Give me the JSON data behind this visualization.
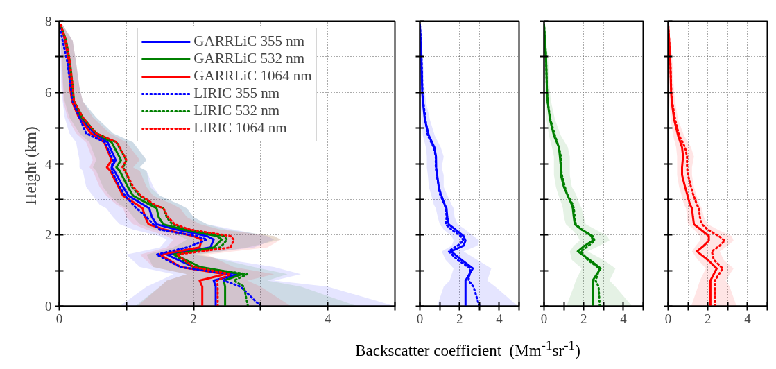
{
  "chart_data": [
    {
      "type": "line",
      "orientation": "horizontal",
      "xlabel": "Backscatter coefficient  (Mm$^{-1}$sr$^{-1}$)",
      "ylabel": "Height  (km)",
      "legend": "top",
      "grid": true,
      "xlim": [
        0,
        5
      ],
      "xticks": [
        0,
        {
          "value": 1,
          "label": null
        },
        2,
        {
          "value": 3,
          "label": null
        },
        4,
        {
          "value": 5,
          "label": null
        }
      ],
      "ylim": [
        0,
        8
      ],
      "yticks": [
        0,
        {
          "value": 1,
          "label": null
        },
        2,
        {
          "value": 3,
          "label": null
        },
        4,
        {
          "value": 5,
          "label": null
        },
        6,
        {
          "value": 7,
          "label": null
        },
        8
      ],
      "series": [
        {
          "name": "GARRLiC 355 nm",
          "color": "#0000ff",
          "line_style": "solid",
          "values": [
            2.33,
            2.33,
            2.3,
            2.67,
            2.0,
            1.6,
            2.25,
            2.3,
            2.2,
            1.75,
            1.45,
            1.38,
            1.34,
            1.25,
            1.03,
            0.95,
            0.82,
            0.78,
            0.84,
            0.72,
            0.52,
            0.31,
            0.2,
            0.17,
            0.14,
            0.09,
            0.02
          ],
          "x": [
            0,
            0.55,
            0.72,
            0.9,
            1.1,
            1.45,
            1.65,
            1.87,
            1.97,
            2.15,
            2.3,
            2.5,
            2.75,
            2.85,
            3.1,
            3.35,
            3.8,
            3.9,
            4.1,
            4.6,
            4.85,
            5.3,
            5.75,
            6.15,
            6.85,
            7.45,
            7.9
          ],
          "lower": [
            0.9,
            1.3,
            1.5,
            1.7,
            1.2,
            1.0,
            1.5,
            1.6,
            1.5,
            1.1,
            0.9,
            0.8,
            0.7,
            0.6,
            0.5,
            0.4,
            0.35,
            0.3,
            0.3,
            0.25,
            0.15,
            0.08,
            0.05,
            0.03,
            0.02,
            0.01,
            0.0
          ],
          "upper": [
            5.0,
            4.0,
            3.2,
            3.6,
            3.2,
            2.0,
            2.9,
            3.2,
            3.1,
            2.6,
            2.2,
            2.0,
            1.9,
            1.8,
            1.5,
            1.4,
            1.3,
            1.2,
            1.3,
            1.1,
            0.8,
            0.55,
            0.35,
            0.3,
            0.25,
            0.2,
            0.05
          ]
        },
        {
          "name": "GARRLiC 532 nm",
          "color": "#008000",
          "line_style": "solid",
          "values": [
            2.47,
            2.47,
            2.45,
            2.72,
            2.1,
            1.72,
            2.3,
            2.42,
            2.35,
            1.85,
            1.55,
            1.48,
            1.45,
            1.35,
            1.1,
            1.02,
            0.9,
            0.85,
            0.92,
            0.78,
            0.55,
            0.33,
            0.2,
            0.18,
            0.15,
            0.1,
            0.02
          ],
          "x": [
            0,
            0.55,
            0.72,
            0.9,
            1.1,
            1.45,
            1.65,
            1.87,
            1.97,
            2.15,
            2.3,
            2.5,
            2.75,
            2.85,
            3.1,
            3.35,
            3.8,
            3.9,
            4.1,
            4.6,
            4.85,
            5.3,
            5.75,
            6.15,
            6.85,
            7.45,
            7.9
          ],
          "lower": [
            1.13,
            1.5,
            1.6,
            1.9,
            1.4,
            1.3,
            1.7,
            1.9,
            1.8,
            1.4,
            1.2,
            1.1,
            1.0,
            0.9,
            0.75,
            0.65,
            0.55,
            0.5,
            0.55,
            0.45,
            0.3,
            0.15,
            0.08,
            0.06,
            0.04,
            0.02,
            0.0
          ],
          "upper": [
            4.44,
            3.6,
            3.1,
            3.4,
            2.9,
            2.1,
            2.8,
            3.3,
            3.2,
            2.5,
            2.2,
            2.0,
            1.9,
            1.8,
            1.5,
            1.35,
            1.3,
            1.2,
            1.3,
            1.1,
            0.8,
            0.55,
            0.35,
            0.3,
            0.25,
            0.2,
            0.05
          ]
        },
        {
          "name": "GARRLiC 1064 nm",
          "color": "#ff0000",
          "line_style": "solid",
          "values": [
            2.13,
            2.13,
            2.09,
            2.47,
            1.81,
            1.5,
            2.09,
            2.12,
            2.0,
            1.57,
            1.33,
            1.28,
            1.24,
            1.16,
            0.95,
            0.88,
            0.76,
            0.71,
            0.78,
            0.67,
            0.47,
            0.29,
            0.19,
            0.16,
            0.14,
            0.09,
            0.02
          ],
          "x": [
            0,
            0.55,
            0.72,
            0.9,
            1.1,
            1.45,
            1.65,
            1.87,
            1.97,
            2.15,
            2.3,
            2.5,
            2.75,
            2.85,
            3.1,
            3.35,
            3.8,
            3.9,
            4.1,
            4.6,
            4.85,
            5.3,
            5.75,
            6.15,
            6.85,
            7.45,
            7.9
          ],
          "lower": [
            1.16,
            1.5,
            1.6,
            1.9,
            1.4,
            1.2,
            1.6,
            1.7,
            1.6,
            1.3,
            1.1,
            1.0,
            0.95,
            0.85,
            0.7,
            0.6,
            0.5,
            0.45,
            0.5,
            0.4,
            0.25,
            0.12,
            0.06,
            0.05,
            0.03,
            0.02,
            0.0
          ],
          "upper": [
            3.45,
            3.0,
            2.8,
            3.2,
            2.6,
            2.2,
            3.1,
            3.3,
            3.2,
            2.4,
            2.1,
            1.9,
            1.8,
            1.7,
            1.4,
            1.3,
            1.2,
            1.1,
            1.2,
            1.0,
            0.75,
            0.5,
            0.35,
            0.3,
            0.25,
            0.2,
            0.05
          ]
        },
        {
          "name": "LIRIC 355 nm",
          "color": "#0000ff",
          "line_style": "dotted",
          "values": [
            3.0,
            2.7,
            2.45,
            2.55,
            1.8,
            1.45,
            1.9,
            2.2,
            2.05,
            1.5,
            1.4,
            1.3,
            1.15,
            1.1,
            0.98,
            0.9,
            0.78,
            0.78,
            0.8,
            0.68,
            0.4,
            0.3,
            0.2,
            0.17,
            0.12,
            0.05,
            0.0
          ],
          "x": [
            0,
            0.55,
            0.72,
            0.9,
            1.1,
            1.45,
            1.65,
            1.87,
            1.97,
            2.15,
            2.3,
            2.5,
            2.75,
            2.85,
            3.1,
            3.35,
            3.8,
            3.9,
            4.1,
            4.6,
            4.85,
            5.3,
            5.75,
            6.15,
            6.85,
            7.45,
            7.9
          ]
        },
        {
          "name": "LIRIC 532 nm",
          "color": "#008000",
          "line_style": "dotted",
          "values": [
            2.81,
            2.75,
            2.6,
            2.8,
            2.0,
            1.7,
            2.4,
            2.5,
            2.45,
            1.9,
            1.68,
            1.6,
            1.55,
            1.4,
            1.2,
            1.08,
            0.98,
            0.95,
            1.0,
            0.85,
            0.55,
            0.35,
            0.22,
            0.2,
            0.16,
            0.1,
            0.02
          ],
          "x": [
            0,
            0.55,
            0.72,
            0.9,
            1.1,
            1.45,
            1.65,
            1.87,
            1.97,
            2.15,
            2.3,
            2.5,
            2.75,
            2.85,
            3.1,
            3.35,
            3.8,
            3.9,
            4.1,
            4.6,
            4.85,
            5.3,
            5.75,
            6.15,
            6.85,
            7.45,
            7.9
          ]
        },
        {
          "name": "LIRIC 1064 nm",
          "color": "#ff0000",
          "line_style": "dotted",
          "values": [
            2.36,
            2.36,
            2.35,
            2.55,
            2.0,
            1.75,
            2.55,
            2.6,
            2.55,
            1.95,
            1.72,
            1.62,
            1.55,
            1.42,
            1.22,
            1.1,
            0.98,
            0.94,
            1.0,
            0.86,
            0.55,
            0.35,
            0.22,
            0.2,
            0.16,
            0.1,
            0.02
          ],
          "x": [
            0,
            0.55,
            0.72,
            0.9,
            1.1,
            1.45,
            1.65,
            1.87,
            1.97,
            2.15,
            2.3,
            2.5,
            2.75,
            2.85,
            3.1,
            3.35,
            3.8,
            3.9,
            4.1,
            4.6,
            4.85,
            5.3,
            5.75,
            6.15,
            6.85,
            7.45,
            7.9
          ]
        }
      ]
    },
    {
      "type": "line",
      "orientation": "horizontal",
      "grid": true,
      "tick_labels": "x",
      "xlim": [
        0,
        5
      ],
      "xticks": [
        0,
        {
          "value": 1,
          "label": null
        },
        2,
        {
          "value": 3,
          "label": null
        },
        4,
        {
          "value": 5,
          "label": null
        }
      ],
      "ylim": [
        0,
        8
      ],
      "yticks": [
        0,
        {
          "value": 1,
          "label": null
        },
        {
          "value": 2,
          "label": null
        },
        {
          "value": 3,
          "label": null
        },
        {
          "value": 4,
          "label": null
        },
        {
          "value": 5,
          "label": null
        },
        {
          "value": 6,
          "label": null
        },
        {
          "value": 7,
          "label": null
        },
        {
          "value": 8,
          "label": null
        }
      ],
      "series": [
        {
          "color": "#0000ff",
          "line_style": "solid",
          "values": [
            2.3,
            2.3,
            2.3,
            2.67,
            2.1,
            1.57,
            2.2,
            2.3,
            2.2,
            1.8,
            1.45,
            1.38,
            1.34,
            1.25,
            1.05,
            0.95,
            0.87,
            0.82,
            0.81,
            0.73,
            0.45,
            0.25,
            0.15,
            0.12,
            0.07,
            0.03,
            0.0
          ],
          "x": [
            0,
            0.55,
            0.72,
            1.06,
            1.3,
            1.54,
            1.7,
            1.84,
            1.97,
            2.15,
            2.3,
            2.5,
            2.75,
            2.85,
            3.16,
            3.35,
            3.68,
            3.9,
            4.2,
            4.46,
            4.79,
            5.24,
            5.75,
            6.0,
            7.0,
            7.45,
            7.9
          ],
          "lower": [
            0.87,
            1.2,
            1.5,
            1.7,
            1.3,
            1.1,
            1.6,
            1.7,
            1.6,
            1.2,
            1.0,
            0.9,
            0.8,
            0.7,
            0.55,
            0.45,
            0.4,
            0.35,
            0.35,
            0.3,
            0.15,
            0.08,
            0.05,
            0.03,
            0.02,
            0.01,
            0.0
          ],
          "upper": [
            4.94,
            3.8,
            3.4,
            3.6,
            2.9,
            2.2,
            2.9,
            3.0,
            2.7,
            2.3,
            1.9,
            1.75,
            1.7,
            1.6,
            1.35,
            1.2,
            1.2,
            1.1,
            1.2,
            1.05,
            0.75,
            0.5,
            0.3,
            0.25,
            0.15,
            0.1,
            0.03
          ]
        },
        {
          "color": "#0000ff",
          "line_style": "dotted",
          "values": [
            3.0,
            2.7,
            2.45,
            2.55,
            1.9,
            1.45,
            1.9,
            2.2,
            2.05,
            1.6,
            1.3,
            1.35,
            1.3,
            1.25,
            1.0,
            0.95,
            0.85,
            0.8,
            0.8,
            0.7,
            0.4,
            0.28,
            0.17,
            0.13,
            0.08,
            0.05,
            0.0
          ],
          "x": [
            0,
            0.55,
            0.72,
            1.06,
            1.3,
            1.54,
            1.7,
            1.84,
            1.97,
            2.15,
            2.3,
            2.5,
            2.75,
            2.85,
            3.16,
            3.35,
            3.68,
            3.9,
            4.2,
            4.46,
            4.79,
            5.24,
            5.75,
            6.0,
            7.0,
            7.45,
            7.9
          ]
        }
      ]
    },
    {
      "type": "line",
      "orientation": "horizontal",
      "grid": true,
      "tick_labels": "x",
      "xlim": [
        0,
        5
      ],
      "xticks": [
        0,
        {
          "value": 1,
          "label": null
        },
        2,
        {
          "value": 3,
          "label": null
        },
        4,
        {
          "value": 5,
          "label": null
        }
      ],
      "ylim": [
        0,
        8
      ],
      "yticks": [
        0,
        {
          "value": 1,
          "label": null
        },
        {
          "value": 2,
          "label": null
        },
        {
          "value": 3,
          "label": null
        },
        {
          "value": 4,
          "label": null
        },
        {
          "value": 5,
          "label": null
        },
        {
          "value": 6,
          "label": null
        },
        {
          "value": 7,
          "label": null
        },
        {
          "value": 8,
          "label": null
        }
      ],
      "series": [
        {
          "color": "#008000",
          "line_style": "solid",
          "values": [
            2.45,
            2.45,
            2.45,
            2.85,
            2.3,
            1.7,
            2.05,
            2.45,
            2.4,
            1.9,
            1.55,
            1.5,
            1.45,
            1.4,
            1.15,
            1.0,
            0.85,
            0.85,
            0.8,
            0.75,
            0.5,
            0.3,
            0.18,
            0.15,
            0.1,
            0.05,
            0.0
          ],
          "x": [
            0,
            0.55,
            0.72,
            1.06,
            1.3,
            1.54,
            1.7,
            1.84,
            1.97,
            2.15,
            2.3,
            2.5,
            2.75,
            2.85,
            3.16,
            3.35,
            3.68,
            3.9,
            4.2,
            4.46,
            4.79,
            5.24,
            5.75,
            6.0,
            7.0,
            7.45,
            7.9
          ],
          "lower": [
            1.13,
            1.5,
            1.6,
            1.9,
            1.4,
            1.3,
            1.5,
            1.8,
            1.7,
            1.4,
            1.1,
            1.0,
            0.95,
            0.9,
            0.7,
            0.6,
            0.5,
            0.5,
            0.5,
            0.4,
            0.25,
            0.12,
            0.07,
            0.05,
            0.03,
            0.01,
            0.0
          ],
          "upper": [
            4.44,
            3.6,
            3.3,
            3.6,
            3.0,
            2.2,
            2.8,
            3.3,
            3.2,
            2.6,
            2.1,
            2.0,
            1.9,
            1.8,
            1.6,
            1.4,
            1.3,
            1.3,
            1.3,
            1.2,
            0.85,
            0.55,
            0.35,
            0.3,
            0.2,
            0.1,
            0.03
          ]
        },
        {
          "color": "#008000",
          "line_style": "dotted",
          "values": [
            2.81,
            2.75,
            2.6,
            2.8,
            2.2,
            1.85,
            2.25,
            2.55,
            2.45,
            1.9,
            1.6,
            1.55,
            1.5,
            1.45,
            1.15,
            1.05,
            0.9,
            0.85,
            0.85,
            0.75,
            0.55,
            0.32,
            0.18,
            0.15,
            0.1,
            0.05,
            0.0
          ],
          "x": [
            0,
            0.55,
            0.72,
            1.06,
            1.3,
            1.54,
            1.7,
            1.84,
            1.97,
            2.15,
            2.3,
            2.5,
            2.75,
            2.85,
            3.16,
            3.35,
            3.68,
            3.9,
            4.2,
            4.46,
            4.79,
            5.24,
            5.75,
            6.0,
            7.0,
            7.45,
            7.9
          ]
        }
      ]
    },
    {
      "type": "line",
      "orientation": "horizontal",
      "grid": true,
      "tick_labels": "x",
      "xlim": [
        0,
        5
      ],
      "xticks": [
        0,
        {
          "value": 1,
          "label": null
        },
        2,
        {
          "value": 3,
          "label": null
        },
        4,
        {
          "value": 5,
          "label": null
        }
      ],
      "ylim": [
        0,
        8
      ],
      "yticks": [
        0,
        {
          "value": 1,
          "label": null
        },
        {
          "value": 2,
          "label": null
        },
        {
          "value": 3,
          "label": null
        },
        {
          "value": 4,
          "label": null
        },
        {
          "value": 5,
          "label": null
        },
        {
          "value": 6,
          "label": null
        },
        {
          "value": 7,
          "label": null
        },
        {
          "value": 8,
          "label": null
        }
      ],
      "series": [
        {
          "color": "#ff0000",
          "line_style": "solid",
          "values": [
            2.13,
            2.13,
            2.13,
            2.45,
            2.0,
            1.45,
            1.8,
            2.05,
            2.05,
            1.65,
            1.3,
            1.25,
            1.2,
            1.1,
            0.95,
            0.85,
            0.7,
            0.7,
            0.75,
            0.7,
            0.5,
            0.3,
            0.18,
            0.15,
            0.1,
            0.05,
            0.0
          ],
          "x": [
            0,
            0.55,
            0.72,
            1.06,
            1.3,
            1.54,
            1.7,
            1.84,
            1.97,
            2.15,
            2.3,
            2.5,
            2.75,
            2.85,
            3.16,
            3.35,
            3.68,
            3.9,
            4.2,
            4.46,
            4.79,
            5.24,
            5.75,
            6.0,
            7.0,
            7.45,
            7.9
          ],
          "lower": [
            1.16,
            1.5,
            1.6,
            1.9,
            1.5,
            1.2,
            1.4,
            1.6,
            1.6,
            1.3,
            1.0,
            0.95,
            0.9,
            0.8,
            0.65,
            0.55,
            0.45,
            0.45,
            0.45,
            0.4,
            0.25,
            0.12,
            0.06,
            0.05,
            0.03,
            0.01,
            0.0
          ],
          "upper": [
            3.45,
            3.1,
            2.9,
            3.3,
            2.8,
            2.6,
            3.0,
            3.3,
            3.2,
            2.5,
            2.0,
            1.8,
            1.7,
            1.6,
            1.4,
            1.3,
            1.2,
            1.2,
            1.3,
            1.15,
            0.8,
            0.5,
            0.35,
            0.3,
            0.2,
            0.1,
            0.03
          ]
        },
        {
          "color": "#ff0000",
          "line_style": "dotted",
          "values": [
            2.36,
            2.36,
            2.35,
            2.75,
            2.3,
            2.2,
            2.6,
            2.85,
            2.55,
            2.0,
            1.7,
            1.6,
            1.55,
            1.45,
            1.25,
            1.15,
            1.0,
            0.95,
            0.95,
            0.85,
            0.55,
            0.35,
            0.2,
            0.16,
            0.1,
            0.05,
            0.0
          ],
          "x": [
            0,
            0.55,
            0.72,
            1.06,
            1.3,
            1.54,
            1.7,
            1.84,
            1.97,
            2.15,
            2.3,
            2.5,
            2.75,
            2.85,
            3.16,
            3.35,
            3.68,
            3.9,
            4.2,
            4.46,
            4.79,
            5.24,
            5.75,
            6.0,
            7.0,
            7.45,
            7.9
          ]
        }
      ]
    }
  ]
}
